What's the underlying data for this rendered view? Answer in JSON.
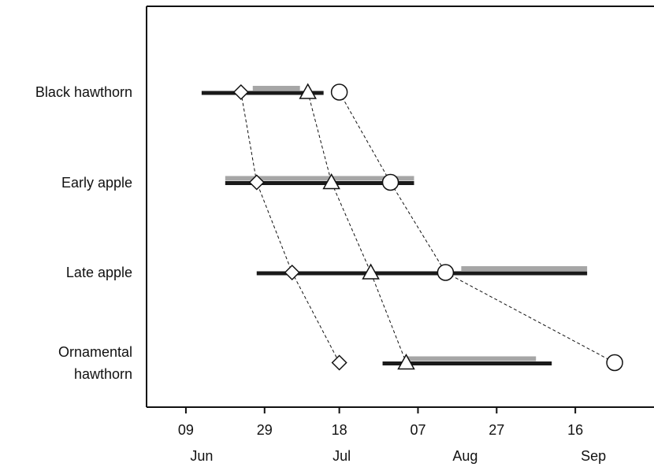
{
  "chart_data": {
    "type": "phenology",
    "xlim": [
      150,
      279
    ],
    "xticks": [
      {
        "value": 160,
        "label": "09"
      },
      {
        "value": 180,
        "label": "29"
      },
      {
        "value": 199,
        "label": "18"
      },
      {
        "value": 219,
        "label": "07"
      },
      {
        "value": 239,
        "label": "27"
      },
      {
        "value": 259,
        "label": "16"
      }
    ],
    "month_labels": [
      {
        "value": 164,
        "label": "Jun"
      },
      {
        "value": 199.6,
        "label": "Jul"
      },
      {
        "value": 231,
        "label": "Aug"
      },
      {
        "value": 263.6,
        "label": "Sep"
      }
    ],
    "colors": {
      "black": "#1a1a1a",
      "grey": "#a6a6a6"
    },
    "rows": [
      {
        "label": "Black hawthorn",
        "black": [
          164,
          195
        ],
        "grey": [
          177,
          189
        ],
        "diamond": 174,
        "triangle": 191,
        "circle": 199
      },
      {
        "label": "Early apple",
        "black": [
          170,
          218
        ],
        "grey": [
          170,
          218
        ],
        "diamond": 178,
        "triangle": 197,
        "circle": 212
      },
      {
        "label": "Late apple",
        "black": [
          178,
          262
        ],
        "grey": [
          230,
          262
        ],
        "diamond": 187,
        "triangle": 207,
        "circle": 226
      },
      {
        "label": "Ornamental hawthorn",
        "black": [
          210,
          253
        ],
        "grey": [
          216,
          249
        ],
        "diamond": 199,
        "triangle": 216,
        "circle": 269
      }
    ]
  }
}
